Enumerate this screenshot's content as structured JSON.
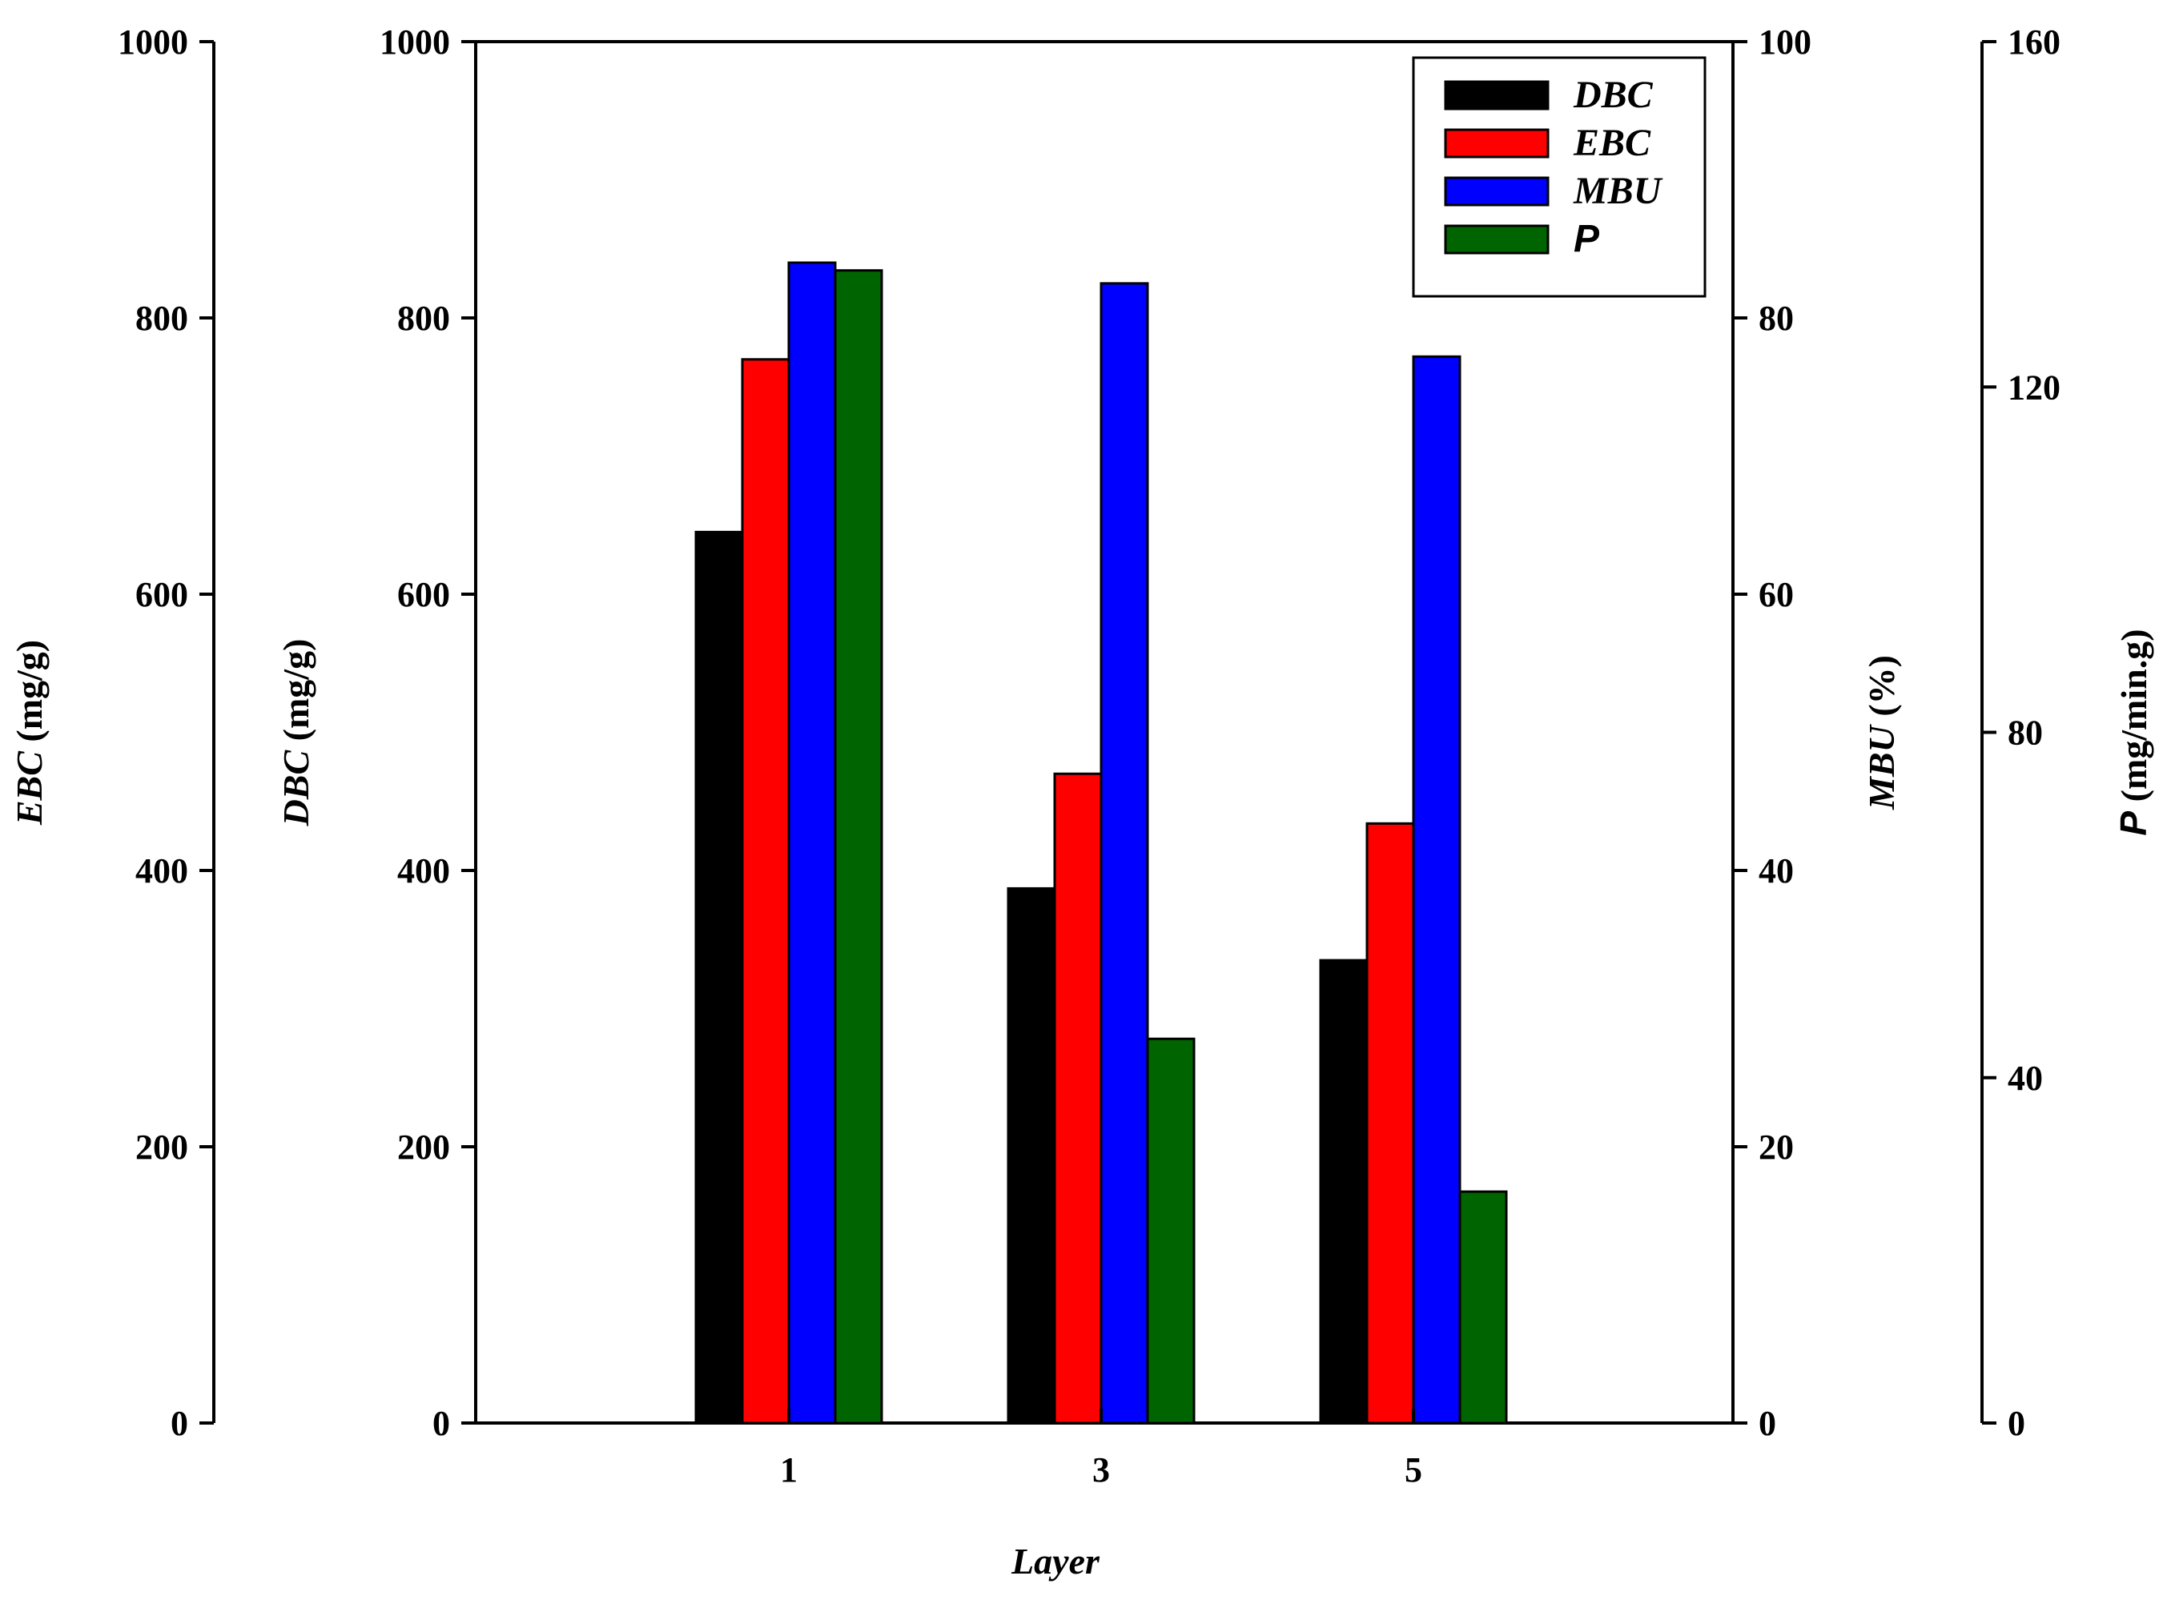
{
  "chart_data": {
    "type": "bar",
    "categories": [
      "1",
      "3",
      "5"
    ],
    "xlabel": "Layer",
    "series": [
      {
        "name": "DBC",
        "axis": "DBC",
        "color": "#000000",
        "values": [
          645,
          387,
          335
        ]
      },
      {
        "name": "EBC",
        "axis": "EBC",
        "color": "#ff0000",
        "values": [
          770,
          470,
          434
        ]
      },
      {
        "name": "MBU",
        "axis": "MBU",
        "color": "#0000ff",
        "values": [
          84,
          82.5,
          77.2
        ]
      },
      {
        "name": "P",
        "axis": "P",
        "color": "#006400",
        "values": [
          133.5,
          44.5,
          26.8
        ]
      }
    ],
    "axes": {
      "EBC": {
        "label_italic": "EBC",
        "label_rest": " (mg/g)",
        "ylim": [
          0,
          1000
        ],
        "ticks": [
          "0",
          "200",
          "400",
          "600",
          "800",
          "1000"
        ]
      },
      "DBC": {
        "label_italic": "DBC",
        "label_rest": " (mg/g)",
        "ylim": [
          0,
          1000
        ],
        "ticks": [
          "0",
          "200",
          "400",
          "600",
          "800",
          "1000"
        ]
      },
      "MBU": {
        "label_italic": "MBU",
        "label_rest": " (%)",
        "ylim": [
          0,
          100
        ],
        "ticks": [
          "0",
          "20",
          "40",
          "60",
          "80",
          "100"
        ]
      },
      "P": {
        "label_italic": "P",
        "label_rest": " (mg/min.g)",
        "ylim": [
          0,
          160
        ],
        "ticks": [
          "0",
          "40",
          "80",
          "120",
          "160"
        ]
      }
    },
    "legend": {
      "position": "top-right"
    },
    "grid": false
  }
}
